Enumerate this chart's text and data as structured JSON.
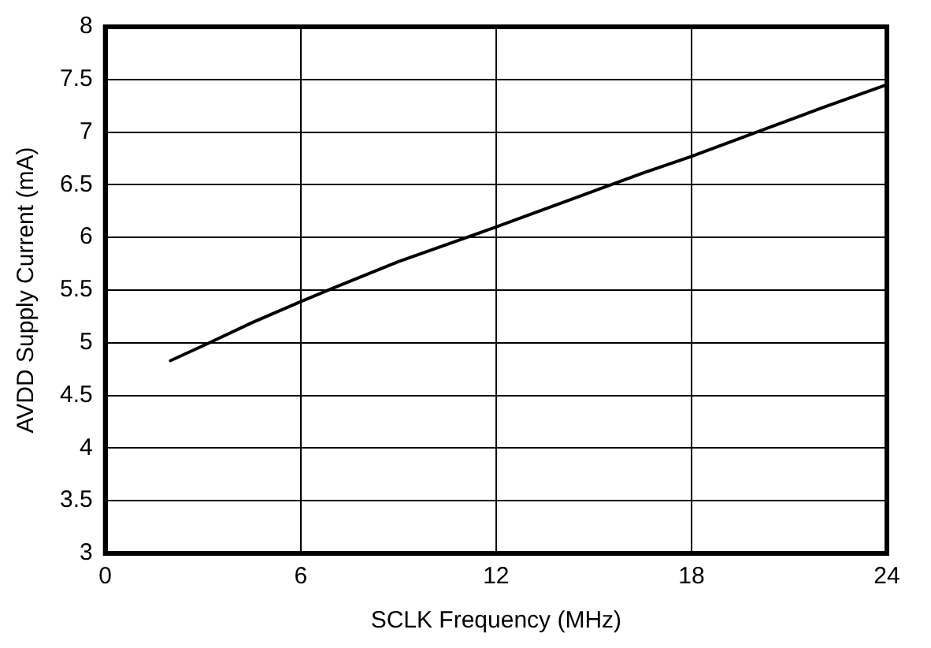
{
  "chart_data": {
    "type": "line",
    "xlabel": "SCLK Frequency (MHz)",
    "ylabel": "AVDD Supply Current (mA)",
    "x": [
      2,
      3.2,
      4.5,
      6,
      7,
      9,
      11,
      12,
      13.5,
      15,
      16.5,
      18,
      20,
      22,
      24
    ],
    "series": [
      {
        "color": "#000000",
        "values": [
          4.83,
          5.0,
          5.19,
          5.39,
          5.52,
          5.77,
          5.99,
          6.1,
          6.27,
          6.44,
          6.61,
          6.77,
          7.0,
          7.23,
          7.45
        ]
      }
    ],
    "xlim": [
      0,
      24
    ],
    "xticks": [
      0,
      6,
      12,
      18,
      24
    ],
    "ylim": [
      3,
      8
    ],
    "yticks": [
      3,
      3.5,
      4,
      4.5,
      5,
      5.5,
      6,
      6.5,
      7,
      7.5,
      8
    ],
    "grid": true,
    "legend": false,
    "marker": "none",
    "line_style": "solid"
  }
}
